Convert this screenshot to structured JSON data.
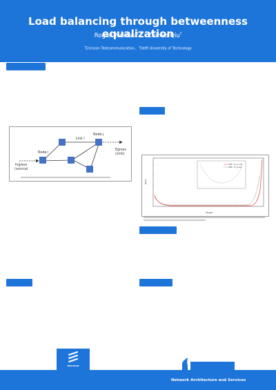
{
  "poster": {
    "title": "Load balancing through betweenness equalization",
    "author1": "Rogier Noldus",
    "author1_sup": "*†",
    "author2": "Zhihao Qiu",
    "author2_sup": "†",
    "affil1_sup": "*",
    "affil1": "Ericsson Telecommunication,",
    "affil2_sup": "†",
    "affil2": "Delft University of Technology"
  },
  "figure1": {
    "node_i": "Node i",
    "node_j": "Node j",
    "link_l": "Link l",
    "ingress": "Ingress",
    "source": "(source)",
    "egress": "Egress",
    "sink": "(sink)"
  },
  "chart_data": {
    "type": "line",
    "ylabel": "Ratio",
    "xlabel": "Weight",
    "legend_placement": "inset-top-center",
    "series": [
      {
        "name": "GNP – B_{l,rnd}",
        "color": "#e53935"
      },
      {
        "name": "GNP – B_{l,eq}",
        "color": "#999999"
      }
    ]
  },
  "footer": {
    "text": "Network Architecture and Services",
    "logo_text": "ERICSSON"
  }
}
